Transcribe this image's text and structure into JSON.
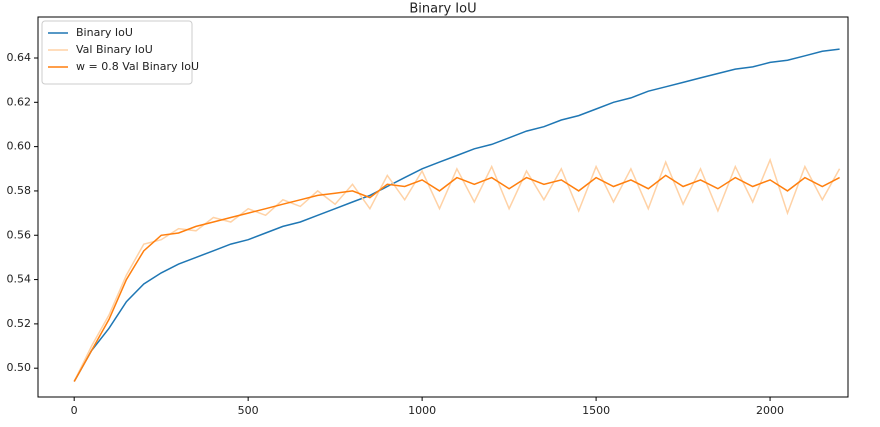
{
  "chart_data": {
    "type": "line",
    "title": "Binary IoU",
    "x": [
      0,
      50,
      100,
      150,
      200,
      250,
      300,
      350,
      400,
      450,
      500,
      550,
      600,
      650,
      700,
      750,
      800,
      850,
      900,
      950,
      1000,
      1050,
      1100,
      1150,
      1200,
      1250,
      1300,
      1350,
      1400,
      1450,
      1500,
      1550,
      1600,
      1650,
      1700,
      1750,
      1800,
      1850,
      1900,
      1950,
      2000,
      2050,
      2100,
      2150,
      2200
    ],
    "series": [
      {
        "name": "Binary IoU",
        "color": "#1f77b4",
        "values": [
          0.494,
          0.508,
          0.518,
          0.53,
          0.538,
          0.543,
          0.547,
          0.55,
          0.553,
          0.556,
          0.558,
          0.561,
          0.564,
          0.566,
          0.569,
          0.572,
          0.575,
          0.578,
          0.582,
          0.586,
          0.59,
          0.593,
          0.596,
          0.599,
          0.601,
          0.604,
          0.607,
          0.609,
          0.612,
          0.614,
          0.617,
          0.62,
          0.622,
          0.625,
          0.627,
          0.629,
          0.631,
          0.633,
          0.635,
          0.636,
          0.638,
          0.639,
          0.641,
          0.643,
          0.644
        ]
      },
      {
        "name": "Val Binary IoU",
        "color": "#ffd2a6",
        "values": [
          0.494,
          0.51,
          0.524,
          0.542,
          0.556,
          0.558,
          0.563,
          0.562,
          0.568,
          0.566,
          0.572,
          0.569,
          0.576,
          0.573,
          0.58,
          0.574,
          0.583,
          0.572,
          0.587,
          0.576,
          0.589,
          0.572,
          0.59,
          0.575,
          0.591,
          0.572,
          0.589,
          0.576,
          0.59,
          0.571,
          0.591,
          0.575,
          0.59,
          0.572,
          0.593,
          0.574,
          0.59,
          0.571,
          0.591,
          0.575,
          0.594,
          0.57,
          0.591,
          0.576,
          0.59
        ]
      },
      {
        "name": "w = 0.8 Val Binary IoU",
        "color": "#ff7f0e",
        "values": [
          0.494,
          0.508,
          0.522,
          0.54,
          0.553,
          0.56,
          0.561,
          0.564,
          0.566,
          0.568,
          0.57,
          0.572,
          0.574,
          0.576,
          0.578,
          0.579,
          0.58,
          0.577,
          0.583,
          0.582,
          0.585,
          0.58,
          0.586,
          0.583,
          0.586,
          0.581,
          0.586,
          0.583,
          0.585,
          0.58,
          0.586,
          0.582,
          0.585,
          0.581,
          0.587,
          0.582,
          0.585,
          0.581,
          0.586,
          0.582,
          0.585,
          0.58,
          0.586,
          0.582,
          0.586
        ]
      }
    ],
    "xlim": [
      -104,
      2224
    ],
    "ylim": [
      0.487,
      0.6585
    ],
    "xticks": [
      0,
      500,
      1000,
      1500,
      2000
    ],
    "yticks": [
      {
        "value": 0.5,
        "label": "0.50"
      },
      0.52,
      0.54,
      0.56,
      0.58,
      {
        "value": 0.6,
        "label": "0.60"
      },
      0.62,
      0.64
    ],
    "grid": false,
    "legend": "upper-left"
  }
}
